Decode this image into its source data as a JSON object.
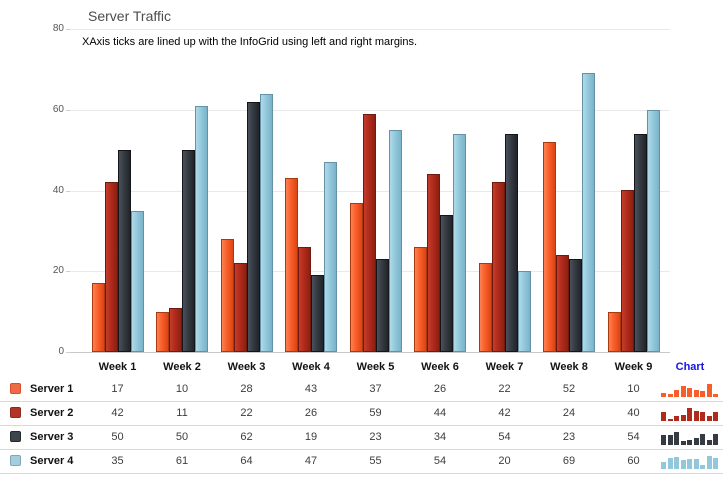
{
  "title": "Server Traffic",
  "annotation": "XAxis ticks are lined up with the InfoGrid using left and right margins.",
  "chart_data": {
    "type": "bar",
    "title": "Server Traffic",
    "categories": [
      "Week 1",
      "Week 2",
      "Week 3",
      "Week 4",
      "Week 5",
      "Week 6",
      "Week 7",
      "Week 8",
      "Week 9"
    ],
    "series": [
      {
        "name": "Server 1",
        "values": [
          17,
          10,
          28,
          43,
          37,
          26,
          22,
          52,
          10
        ],
        "color": {
          "light": "#fc8150",
          "base": "#f85e2a",
          "dark": "#db4413",
          "border": "#a83a10",
          "swatch": "#f06a45",
          "swatch_border": "#d4502a"
        }
      },
      {
        "name": "Server 2",
        "values": [
          42,
          11,
          22,
          26,
          59,
          44,
          42,
          24,
          40
        ],
        "color": {
          "light": "#c43d2c",
          "base": "#b02b1c",
          "dark": "#8c2012",
          "border": "#6e1a0e",
          "swatch": "#b23527",
          "swatch_border": "#8c2a1e"
        }
      },
      {
        "name": "Server 3",
        "values": [
          50,
          50,
          62,
          19,
          23,
          34,
          54,
          23,
          54
        ],
        "color": {
          "light": "#4b515b",
          "base": "#363b43",
          "dark": "#212429",
          "border": "#131518",
          "swatch": "#3e444b",
          "swatch_border": "#24282e"
        }
      },
      {
        "name": "Server 4",
        "values": [
          35,
          61,
          64,
          47,
          55,
          54,
          20,
          69,
          60
        ],
        "color": {
          "light": "#b0dae8",
          "base": "#93c8dc",
          "dark": "#7ab3c9",
          "border": "#6492a4",
          "swatch": "#a5cedd",
          "swatch_border": "#7da9ba"
        }
      }
    ],
    "ylim": [
      0,
      80
    ],
    "yticks": [
      0,
      20,
      40,
      60,
      80
    ],
    "grid": true,
    "legend_position": "info-grid-left"
  },
  "info_grid": {
    "chart_column_label": "Chart",
    "chart_column_color": "#1515e0"
  }
}
